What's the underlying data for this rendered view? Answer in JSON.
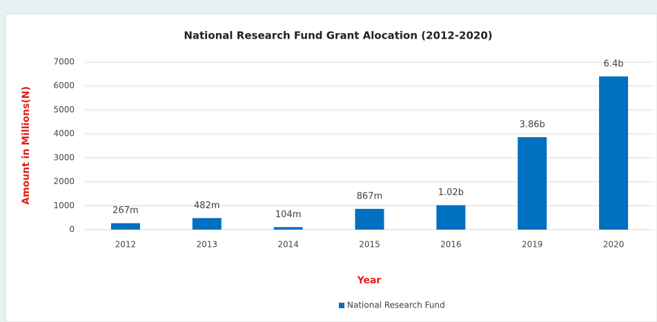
{
  "chart_data": {
    "type": "bar",
    "title": "National  Research Fund  Grant Alocation (2012-2020)",
    "x_label": "Year",
    "y_label": "Amount in Millions(N)",
    "categories": [
      "2012",
      "2013",
      "2014",
      "2015",
      "2016",
      "2019",
      "2020"
    ],
    "series": [
      {
        "name": "National Research Fund",
        "color": "#0070c0",
        "values": [
          267,
          482,
          104,
          867,
          1020,
          3860,
          6400
        ],
        "value_labels": [
          "267m",
          "482m",
          "104m",
          "867m",
          "1.02b",
          "3.86b",
          "6.4b"
        ]
      }
    ],
    "ylim": [
      0,
      7000
    ],
    "yticks": [
      0,
      1000,
      2000,
      3000,
      4000,
      5000,
      6000,
      7000
    ],
    "grid": true,
    "legend": "bottom"
  }
}
